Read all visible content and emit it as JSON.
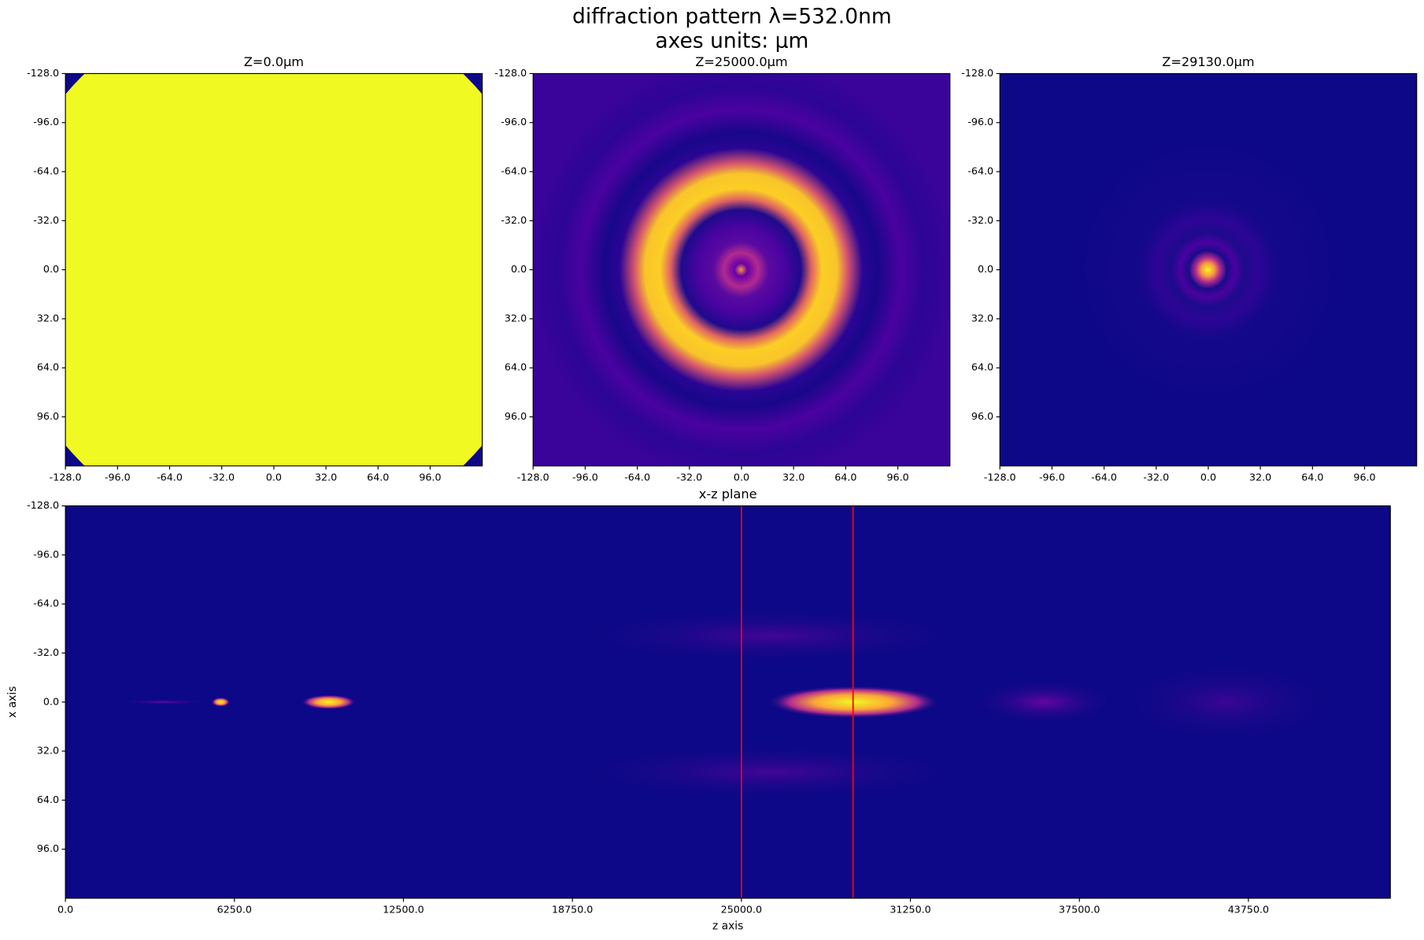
{
  "suptitle": [
    "diffraction pattern λ=532.0nm",
    "axes units: µm"
  ],
  "chart_data": [
    {
      "type": "image",
      "title": "Z=0.0µm",
      "xlim": [
        -128,
        128
      ],
      "ylim": [
        -128,
        128
      ],
      "xticks": [
        {
          "value": -128,
          "label": "-128.0"
        },
        {
          "value": -96,
          "label": "-96.0"
        },
        {
          "value": -64,
          "label": "-64.0"
        },
        {
          "value": -32,
          "label": "-32.0"
        },
        {
          "value": 0,
          "label": "0.0"
        },
        {
          "value": 32,
          "label": "32.0"
        },
        {
          "value": 64,
          "label": "64.0"
        },
        {
          "value": 96,
          "label": "96.0"
        }
      ],
      "yticks": [
        {
          "value": -128,
          "label": "-128.0"
        },
        {
          "value": -96,
          "label": "-96.0"
        },
        {
          "value": -64,
          "label": "-64.0"
        },
        {
          "value": -32,
          "label": "-32.0"
        },
        {
          "value": 0,
          "label": "0.0"
        },
        {
          "value": 32,
          "label": "32.0"
        },
        {
          "value": 64,
          "label": "64.0"
        },
        {
          "value": 96,
          "label": "96.0"
        }
      ]
    },
    {
      "type": "image",
      "title": "Z=25000.0µm",
      "xlim": [
        -128,
        128
      ],
      "ylim": [
        -128,
        128
      ],
      "xticks": [
        {
          "value": -128,
          "label": "-128.0"
        },
        {
          "value": -96,
          "label": "-96.0"
        },
        {
          "value": -64,
          "label": "-64.0"
        },
        {
          "value": -32,
          "label": "-32.0"
        },
        {
          "value": 0,
          "label": "0.0"
        },
        {
          "value": 32,
          "label": "32.0"
        },
        {
          "value": 64,
          "label": "64.0"
        },
        {
          "value": 96,
          "label": "96.0"
        }
      ],
      "yticks": [
        {
          "value": -128,
          "label": "-128.0"
        },
        {
          "value": -96,
          "label": "-96.0"
        },
        {
          "value": -64,
          "label": "-64.0"
        },
        {
          "value": -32,
          "label": "-32.0"
        },
        {
          "value": 0,
          "label": "0.0"
        },
        {
          "value": 32,
          "label": "32.0"
        },
        {
          "value": 64,
          "label": "64.0"
        },
        {
          "value": 96,
          "label": "96.0"
        }
      ]
    },
    {
      "type": "image",
      "title": "Z=29130.0µm",
      "xlim": [
        -128,
        128
      ],
      "ylim": [
        -128,
        128
      ],
      "xticks": [
        {
          "value": -128,
          "label": "-128.0"
        },
        {
          "value": -96,
          "label": "-96.0"
        },
        {
          "value": -64,
          "label": "-64.0"
        },
        {
          "value": -32,
          "label": "-32.0"
        },
        {
          "value": 0,
          "label": "0.0"
        },
        {
          "value": 32,
          "label": "32.0"
        },
        {
          "value": 64,
          "label": "64.0"
        },
        {
          "value": 96,
          "label": "96.0"
        }
      ],
      "yticks": [
        {
          "value": -128,
          "label": "-128.0"
        },
        {
          "value": -96,
          "label": "-96.0"
        },
        {
          "value": -64,
          "label": "-64.0"
        },
        {
          "value": -32,
          "label": "-32.0"
        },
        {
          "value": 0,
          "label": "0.0"
        },
        {
          "value": 32,
          "label": "32.0"
        },
        {
          "value": 64,
          "label": "64.0"
        },
        {
          "value": 96,
          "label": "96.0"
        }
      ]
    },
    {
      "type": "image",
      "title": "x-z plane",
      "xlabel": "z axis",
      "ylabel": "x axis",
      "xlim": [
        0,
        49000
      ],
      "ylim": [
        -128,
        128
      ],
      "xticks": [
        {
          "value": 0,
          "label": "0.0"
        },
        {
          "value": 6250,
          "label": "6250.0"
        },
        {
          "value": 12500,
          "label": "12500.0"
        },
        {
          "value": 18750,
          "label": "18750.0"
        },
        {
          "value": 25000,
          "label": "25000.0"
        },
        {
          "value": 31250,
          "label": "31250.0"
        },
        {
          "value": 37500,
          "label": "37500.0"
        },
        {
          "value": 43750,
          "label": "43750.0"
        }
      ],
      "yticks": [
        {
          "value": -128,
          "label": "-128.0"
        },
        {
          "value": -96,
          "label": "-96.0"
        },
        {
          "value": -64,
          "label": "-64.0"
        },
        {
          "value": -32,
          "label": "-32.0"
        },
        {
          "value": 0,
          "label": "0.0"
        },
        {
          "value": 32,
          "label": "32.0"
        },
        {
          "value": 64,
          "label": "64.0"
        },
        {
          "value": 96,
          "label": "96.0"
        }
      ],
      "vlines": [
        25000,
        29130
      ],
      "vline_color": "red"
    }
  ]
}
